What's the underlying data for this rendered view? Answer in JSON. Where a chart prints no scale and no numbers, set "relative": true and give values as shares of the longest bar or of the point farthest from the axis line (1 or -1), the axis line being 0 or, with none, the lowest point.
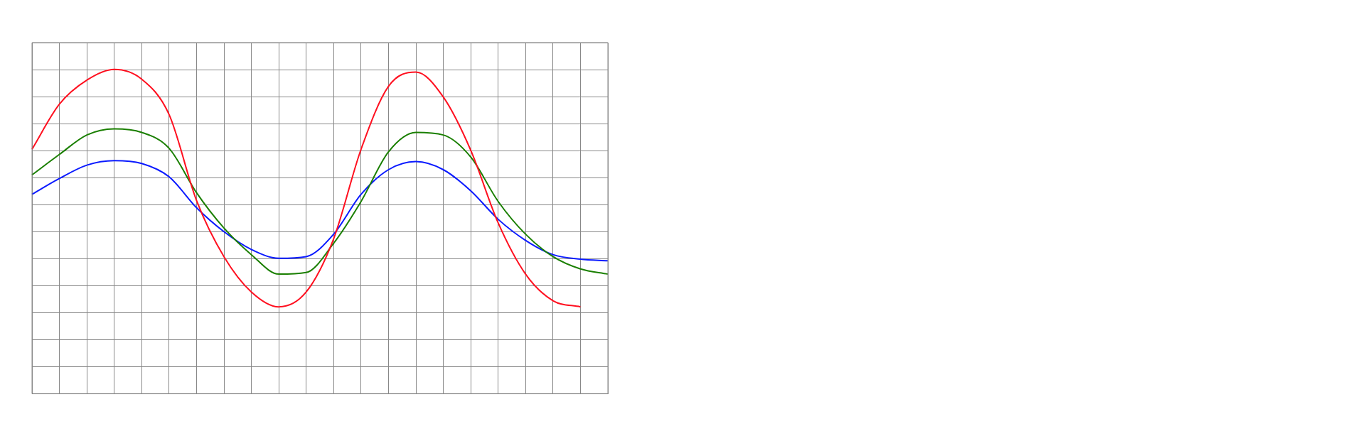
{
  "chart_data": {
    "type": "line",
    "relative": true,
    "grid": true,
    "legend": false,
    "marker": "none",
    "line_style": "solid",
    "categories": [
      null,
      null,
      null,
      null,
      null,
      null,
      null,
      null,
      null,
      null,
      null,
      null,
      null,
      null,
      null,
      null,
      null,
      null,
      null,
      null,
      null,
      null
    ],
    "series": [
      {
        "color": "#ff1020",
        "values": [
          0.754,
          0.893,
          0.967,
          1.0,
          0.97,
          0.861,
          0.596,
          0.423,
          0.314,
          0.268,
          0.314,
          0.478,
          0.754,
          0.948,
          0.992,
          0.915,
          0.751,
          0.527,
          0.369,
          0.287,
          0.268,
          null
        ]
      },
      {
        "color": "#1a7f00",
        "values": [
          0.675,
          0.738,
          0.798,
          0.817,
          0.806,
          0.757,
          0.62,
          0.511,
          0.429,
          0.369,
          0.374,
          0.464,
          0.593,
          0.746,
          0.806,
          0.798,
          0.73,
          0.593,
          0.492,
          0.423,
          0.385,
          0.369
        ]
      },
      {
        "color": "#0a1aff",
        "values": [
          0.615,
          0.664,
          0.705,
          0.719,
          0.71,
          0.669,
          0.574,
          0.5,
          0.445,
          0.418,
          0.423,
          0.492,
          0.615,
          0.691,
          0.716,
          0.691,
          0.626,
          0.538,
          0.473,
          0.429,
          0.415,
          0.41
        ]
      }
    ]
  }
}
